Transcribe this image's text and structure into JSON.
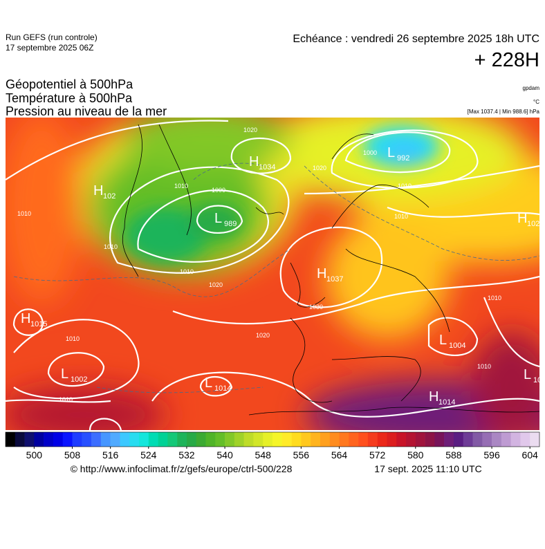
{
  "header": {
    "run": "Run GEFS (run controle)",
    "run_date": "17 septembre 2025 06Z",
    "echeance": "Echéance : vendredi 26 septembre 2025 18h UTC",
    "lead": "+ 228H"
  },
  "titles": [
    "Géopotentiel à 500hPa",
    "Température à 500hPa",
    "Pression au niveau de la mer"
  ],
  "units": [
    "gpdam",
    "°C",
    "[Max 1037.4 | Min 988.6] hPa"
  ],
  "centers": [
    {
      "symbol": "H",
      "value": "1034"
    },
    {
      "symbol": "L",
      "value": "992"
    },
    {
      "symbol": "H",
      "value": "102"
    },
    {
      "symbol": "L",
      "value": "989"
    },
    {
      "symbol": "H",
      "value": "1037"
    },
    {
      "symbol": "H",
      "value": "1015"
    },
    {
      "symbol": "L",
      "value": "1002"
    },
    {
      "symbol": "L",
      "value": "1014"
    },
    {
      "symbol": "L",
      "value": "1004"
    },
    {
      "symbol": "H",
      "value": "1014"
    },
    {
      "symbol": "H",
      "value": "102"
    },
    {
      "symbol": "L",
      "value": "10"
    }
  ],
  "isobar_labels": [
    "1020",
    "1020",
    "1010",
    "1000",
    "1000",
    "1010",
    "1010",
    "1010",
    "1010",
    "1020",
    "1030",
    "1020",
    "1010",
    "1010",
    "1010",
    "1010",
    "1010"
  ],
  "colorbar": {
    "lim": [
      494,
      606
    ],
    "ticks": [
      500,
      508,
      516,
      524,
      532,
      540,
      548,
      556,
      564,
      572,
      580,
      588,
      596,
      604
    ],
    "colors": [
      "#000000",
      "#0a0a3c",
      "#0f0f6e",
      "#0000a0",
      "#0000c8",
      "#0000e6",
      "#0a14ff",
      "#1e3cff",
      "#2850ff",
      "#3c6eff",
      "#4696ff",
      "#50aaff",
      "#3cc8ff",
      "#28dcf0",
      "#14e6dc",
      "#00dcb4",
      "#00d296",
      "#14c878",
      "#1eb45a",
      "#28aa46",
      "#3caa32",
      "#50b428",
      "#64be28",
      "#82c828",
      "#a0d228",
      "#bedc28",
      "#d2e628",
      "#e6f028",
      "#f5f528",
      "#ffeb28",
      "#ffdc1e",
      "#ffc81e",
      "#ffb41e",
      "#ffa01e",
      "#ff8c1e",
      "#ff781e",
      "#ff641e",
      "#ff501e",
      "#f53c1e",
      "#eb2819",
      "#dc1e1e",
      "#c81428",
      "#b41432",
      "#a0143c",
      "#8c1446",
      "#78145a",
      "#6e1e78",
      "#5a1e82",
      "#6e3c96",
      "#825aa5",
      "#966eb4",
      "#aa87c3",
      "#be9bd2",
      "#d2b4e1",
      "#e1c8eb",
      "#ebdcf0"
    ]
  },
  "footer": {
    "url": "© http://www.infoclimat.fr/z/gefs/europe/ctrl-500/228",
    "timestamp": "17 sept. 2025 11:10 UTC"
  }
}
